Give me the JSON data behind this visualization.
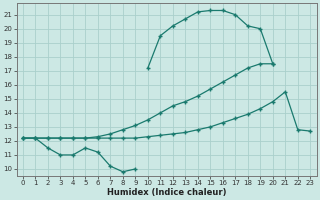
{
  "xlabel": "Humidex (Indice chaleur)",
  "xlim": [
    -0.5,
    23.5
  ],
  "ylim": [
    9.5,
    21.8
  ],
  "yticks": [
    10,
    11,
    12,
    13,
    14,
    15,
    16,
    17,
    18,
    19,
    20,
    21
  ],
  "xticks": [
    0,
    1,
    2,
    3,
    4,
    5,
    6,
    7,
    8,
    9,
    10,
    11,
    12,
    13,
    14,
    15,
    16,
    17,
    18,
    19,
    20,
    21,
    22,
    23
  ],
  "bg_color": "#cce8e4",
  "grid_color": "#aad0cc",
  "line_color": "#1a7a6e",
  "line1_x": [
    0,
    1,
    2,
    3,
    4,
    5,
    6,
    7,
    8,
    9
  ],
  "line1_y": [
    12.2,
    12.2,
    11.5,
    11.0,
    11.0,
    11.5,
    11.2,
    10.2,
    9.8,
    10.0
  ],
  "line2_x": [
    0,
    1,
    2,
    3,
    4,
    5,
    6,
    7,
    8,
    9,
    10,
    11,
    12,
    13,
    14,
    15,
    16,
    17,
    18,
    19,
    20,
    21,
    22,
    23
  ],
  "line2_y": [
    12.2,
    12.2,
    12.2,
    12.2,
    12.2,
    12.2,
    12.2,
    12.2,
    12.2,
    12.2,
    12.3,
    12.4,
    12.5,
    12.6,
    12.8,
    13.0,
    13.3,
    13.6,
    13.9,
    14.3,
    14.8,
    15.5,
    12.8,
    12.7
  ],
  "line3_x": [
    0,
    1,
    2,
    3,
    4,
    5,
    6,
    7,
    8,
    9,
    10,
    11,
    12,
    13,
    14,
    15,
    16,
    17,
    18,
    19,
    20
  ],
  "line3_y": [
    12.2,
    12.2,
    12.2,
    12.2,
    12.2,
    12.2,
    12.3,
    12.5,
    12.8,
    13.1,
    13.5,
    14.0,
    14.5,
    14.8,
    15.2,
    15.7,
    16.2,
    16.7,
    17.2,
    17.5,
    17.5
  ],
  "line4_x": [
    10,
    11,
    12,
    13,
    14,
    15,
    16,
    17,
    18,
    19,
    20
  ],
  "line4_y": [
    17.2,
    19.5,
    20.2,
    20.7,
    21.2,
    21.3,
    21.3,
    21.0,
    20.2,
    20.0,
    17.5
  ]
}
